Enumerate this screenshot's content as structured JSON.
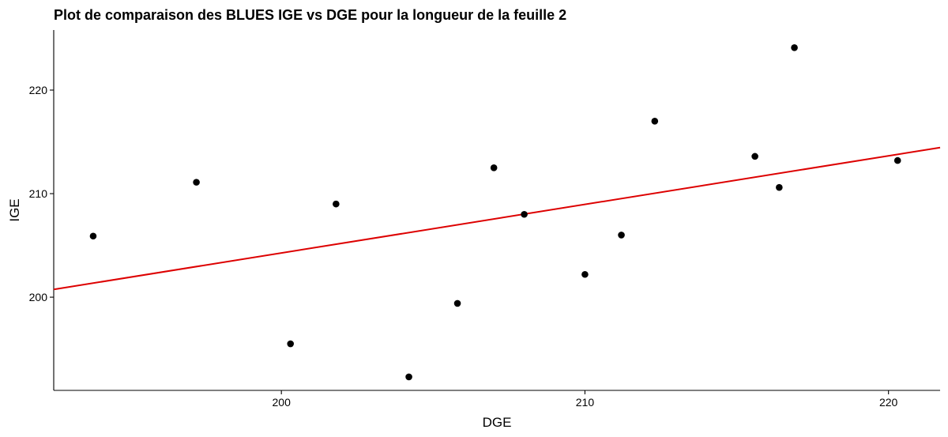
{
  "chart_data": {
    "type": "scatter",
    "title": "Plot de comparaison des BLUES IGE vs DGE pour la longueur de la feuille 2",
    "xlabel": "DGE",
    "ylabel": "IGE",
    "xlim": [
      192.5,
      221.7
    ],
    "ylim": [
      191.0,
      225.8
    ],
    "x_ticks": [
      200,
      210,
      220
    ],
    "y_ticks": [
      200,
      210,
      220
    ],
    "x_tick_labels": [
      "200",
      "210",
      "220"
    ],
    "y_tick_labels": [
      "200",
      "210",
      "220"
    ],
    "grid": false,
    "points": [
      {
        "x": 193.8,
        "y": 205.9
      },
      {
        "x": 197.2,
        "y": 211.1
      },
      {
        "x": 200.3,
        "y": 195.5
      },
      {
        "x": 201.8,
        "y": 209.0
      },
      {
        "x": 204.2,
        "y": 192.3
      },
      {
        "x": 205.8,
        "y": 199.4
      },
      {
        "x": 207.0,
        "y": 212.5
      },
      {
        "x": 208.0,
        "y": 208.0
      },
      {
        "x": 210.0,
        "y": 202.2
      },
      {
        "x": 211.2,
        "y": 206.0
      },
      {
        "x": 212.3,
        "y": 217.0
      },
      {
        "x": 215.6,
        "y": 213.6
      },
      {
        "x": 216.4,
        "y": 210.6
      },
      {
        "x": 216.9,
        "y": 224.1
      },
      {
        "x": 220.3,
        "y": 213.2
      }
    ],
    "fit_line": {
      "x": [
        192.5,
        221.7
      ],
      "y": [
        200.75,
        214.45
      ]
    },
    "colors": {
      "points": "#000000",
      "fit_line": "#dd0000",
      "axis": "#000000"
    }
  }
}
